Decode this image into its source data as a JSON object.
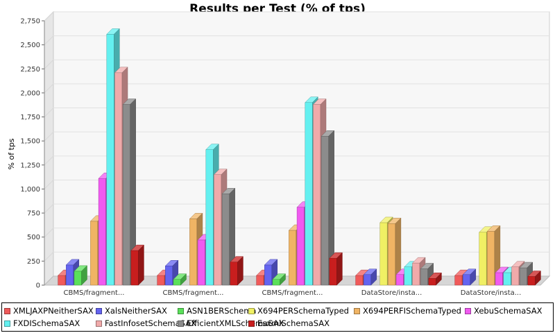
{
  "chart_data": {
    "type": "bar",
    "title": "Results per Test (% of tps)",
    "xlabel": "",
    "ylabel": "% of tps",
    "ylim": [
      0,
      2750
    ],
    "yticks": [
      0,
      250,
      500,
      750,
      1000,
      1250,
      1500,
      1750,
      2000,
      2250,
      2500,
      2750
    ],
    "ytick_labels": [
      "0",
      "250",
      "500",
      "750",
      "1,000",
      "1,250",
      "1,500",
      "1,750",
      "2,000",
      "2,250",
      "2,500",
      "2,750"
    ],
    "grid": true,
    "legend_position": "bottom",
    "categories": [
      "CBMS/fragment...",
      "CBMS/fragment...",
      "CBMS/fragment...",
      "DataStore/insta...",
      "DataStore/insta..."
    ],
    "series": [
      {
        "name": "XMLJAXPNeitherSAX",
        "color": "#f05a5a",
        "values": [
          100,
          100,
          100,
          100,
          100
        ]
      },
      {
        "name": "XalsNeitherSAX",
        "color": "#6464f0",
        "values": [
          210,
          200,
          210,
          110,
          110
        ]
      },
      {
        "name": "ASN1BERSchema",
        "color": "#5ae05a",
        "values": [
          145,
          60,
          60,
          0,
          0
        ]
      },
      {
        "name": "X694PERSchemaTyped",
        "color": "#f0f064",
        "values": [
          0,
          0,
          0,
          650,
          550
        ]
      },
      {
        "name": "X694PERFISchemaTyped",
        "color": "#f0b464",
        "values": [
          665,
          690,
          570,
          640,
          560
        ]
      },
      {
        "name": "XebuSchemaSAX",
        "color": "#f05af0",
        "values": [
          1110,
          470,
          810,
          110,
          130
        ]
      },
      {
        "name": "FXDISchemaSAX",
        "color": "#64f0f0",
        "values": [
          2610,
          1410,
          1900,
          190,
          130
        ]
      },
      {
        "name": "FastInfosetSchemaSAX",
        "color": "#f0aaaa",
        "values": [
          2210,
          1150,
          1880,
          230,
          190
        ]
      },
      {
        "name": "EfficientXMLSchemaSAX",
        "color": "#8c8c8c",
        "values": [
          1880,
          950,
          1550,
          170,
          180
        ]
      },
      {
        "name": "EsxmlSchemaSAX",
        "color": "#c81e1e",
        "values": [
          360,
          240,
          280,
          70,
          90
        ]
      }
    ]
  }
}
